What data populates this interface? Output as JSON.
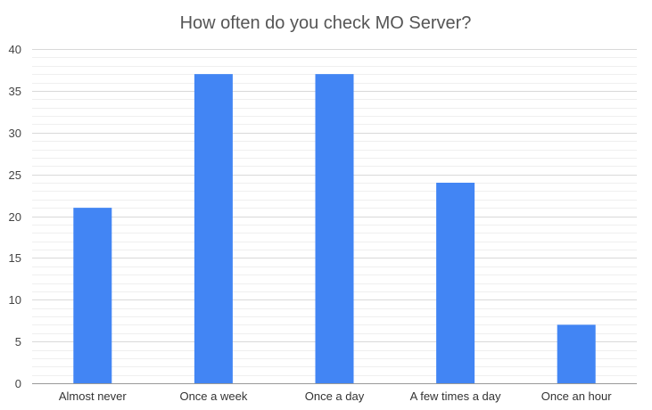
{
  "chart_data": {
    "type": "bar",
    "title": "How often do you check MO Server?",
    "xlabel": "",
    "ylabel": "",
    "categories": [
      "Almost never",
      "Once a week",
      "Once a day",
      "A few times a day",
      "Once an hour"
    ],
    "values": [
      21,
      37,
      37,
      24,
      7
    ],
    "ylim": [
      0,
      40
    ],
    "yticks": [
      0,
      5,
      10,
      15,
      20,
      25,
      30,
      35,
      40
    ],
    "grid": true,
    "legend": "none",
    "bar_color": "#4285F4"
  }
}
